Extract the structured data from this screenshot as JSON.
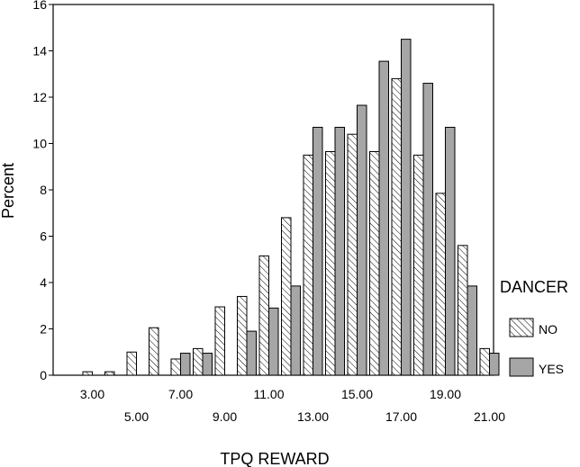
{
  "chart_data": {
    "type": "bar",
    "xlabel": "TPQ REWARD",
    "ylabel": "Percent",
    "ylim": [
      0,
      16
    ],
    "yticks": [
      0,
      2,
      4,
      6,
      8,
      10,
      12,
      14,
      16
    ],
    "categories": [
      3,
      4,
      5,
      6,
      7,
      8,
      9,
      10,
      11,
      12,
      13,
      14,
      15,
      16,
      17,
      18,
      19,
      20,
      21
    ],
    "xtick_labels": [
      {
        "at": 3,
        "text": "3.00"
      },
      {
        "at": 5,
        "text": "5.00"
      },
      {
        "at": 7,
        "text": "7.00"
      },
      {
        "at": 9,
        "text": "9.00"
      },
      {
        "at": 11,
        "text": "11.00"
      },
      {
        "at": 13,
        "text": "13.00"
      },
      {
        "at": 15,
        "text": "15.00"
      },
      {
        "at": 17,
        "text": "17.00"
      },
      {
        "at": 19,
        "text": "19.00"
      },
      {
        "at": 21,
        "text": "21.00"
      }
    ],
    "legend": {
      "title": "DANCER",
      "placement": "right"
    },
    "series": [
      {
        "name": "NO",
        "pattern": "hatched",
        "values": [
          0.15,
          0.15,
          1.0,
          2.05,
          0.7,
          1.15,
          2.95,
          3.4,
          5.15,
          6.8,
          9.5,
          9.65,
          10.4,
          9.65,
          12.8,
          9.5,
          7.85,
          5.6,
          1.15
        ]
      },
      {
        "name": "YES",
        "pattern": "solid",
        "color": "#a6a6a6",
        "values": [
          0,
          0,
          0,
          0,
          0.95,
          0.95,
          0,
          1.9,
          2.9,
          3.85,
          10.7,
          10.7,
          11.65,
          13.55,
          14.5,
          12.6,
          10.7,
          3.85,
          0.95
        ]
      }
    ]
  }
}
